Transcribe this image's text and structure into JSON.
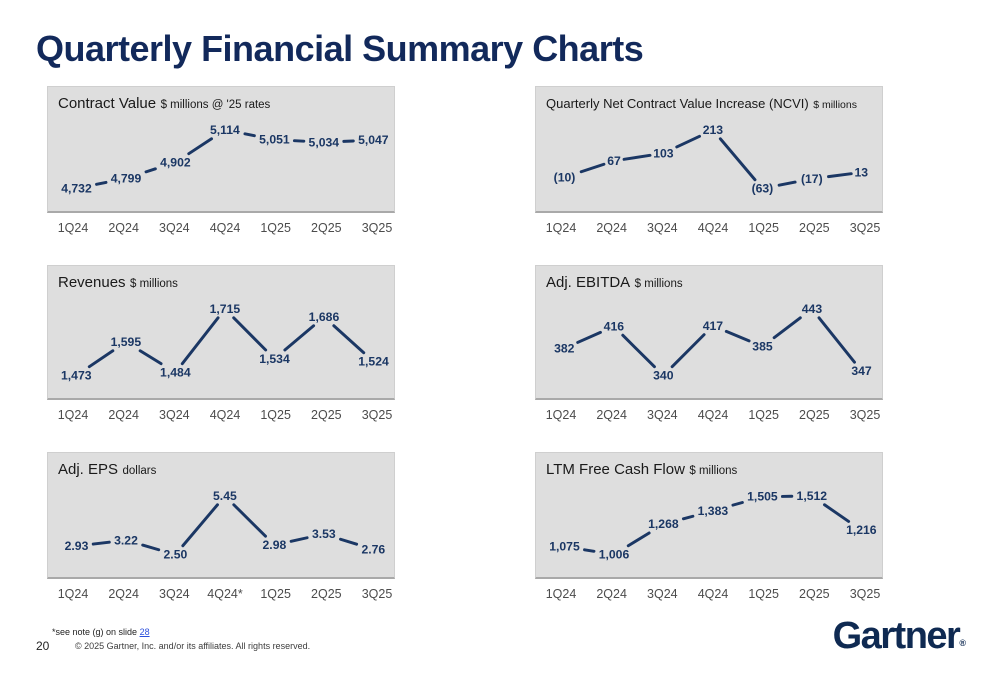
{
  "slide": {
    "title": "Quarterly Financial Summary Charts",
    "page_number": "20",
    "footnote_prefix": "*see note (g) on slide ",
    "footnote_link": "28",
    "copyright": "© 2025 Gartner, Inc. and/or its affiliates. All rights reserved.",
    "logo": "Gartner",
    "logo_reg": "®"
  },
  "colors": {
    "navy": "#1B3764",
    "title_navy": "#12295B",
    "panel_bg": "#DEDEDE",
    "axis_grey": "#A9A9A9",
    "xlabel_grey": "#4C4C4C",
    "link_blue": "#2B4FDD"
  },
  "chart_data": [
    {
      "type": "line",
      "title": "Contract Value",
      "unit": "$ millions @ '25 rates",
      "categories": [
        "1Q24",
        "2Q24",
        "3Q24",
        "4Q24",
        "1Q25",
        "2Q25",
        "3Q25"
      ],
      "values": [
        4732,
        4799,
        4902,
        5114,
        5051,
        5034,
        5047
      ],
      "labels": [
        "4,732",
        "4,799",
        "4,902",
        "5,114",
        "5,051",
        "5,034",
        "5,047"
      ]
    },
    {
      "type": "line",
      "title": "Quarterly Net Contract Value Increase (NCVI)",
      "unit": "$ millions",
      "categories": [
        "1Q24",
        "2Q24",
        "3Q24",
        "4Q24",
        "1Q25",
        "2Q25",
        "3Q25"
      ],
      "values": [
        -10,
        67,
        103,
        213,
        -63,
        -17,
        13
      ],
      "labels": [
        "(10)",
        "67",
        "103",
        "213",
        "(63)",
        "(17)",
        "13"
      ]
    },
    {
      "type": "line",
      "title": "Revenues",
      "unit": "$ millions",
      "categories": [
        "1Q24",
        "2Q24",
        "3Q24",
        "4Q24",
        "1Q25",
        "2Q25",
        "3Q25"
      ],
      "values": [
        1473,
        1595,
        1484,
        1715,
        1534,
        1686,
        1524
      ],
      "labels": [
        "1,473",
        "1,595",
        "1,484",
        "1,715",
        "1,534",
        "1,686",
        "1,524"
      ]
    },
    {
      "type": "line",
      "title": "Adj. EBITDA",
      "unit": "$ millions",
      "categories": [
        "1Q24",
        "2Q24",
        "3Q24",
        "4Q24",
        "1Q25",
        "2Q25",
        "3Q25"
      ],
      "values": [
        382,
        416,
        340,
        417,
        385,
        443,
        347
      ],
      "labels": [
        "382",
        "416",
        "340",
        "417",
        "385",
        "443",
        "347"
      ]
    },
    {
      "type": "line",
      "title": "Adj. EPS",
      "unit": "dollars",
      "categories": [
        "1Q24",
        "2Q24",
        "3Q24",
        "4Q24*",
        "1Q25",
        "2Q25",
        "3Q25"
      ],
      "values": [
        2.93,
        3.22,
        2.5,
        5.45,
        2.98,
        3.53,
        2.76
      ],
      "labels": [
        "2.93",
        "3.22",
        "2.50",
        "5.45",
        "2.98",
        "3.53",
        "2.76"
      ]
    },
    {
      "type": "line",
      "title": "LTM Free Cash Flow",
      "unit": "$ millions",
      "categories": [
        "1Q24",
        "2Q24",
        "3Q24",
        "4Q24",
        "1Q25",
        "2Q25",
        "3Q25"
      ],
      "values": [
        1075,
        1006,
        1268,
        1383,
        1505,
        1512,
        1216
      ],
      "labels": [
        "1,075",
        "1,006",
        "1,268",
        "1,383",
        "1,505",
        "1,512",
        "1,216"
      ]
    }
  ]
}
